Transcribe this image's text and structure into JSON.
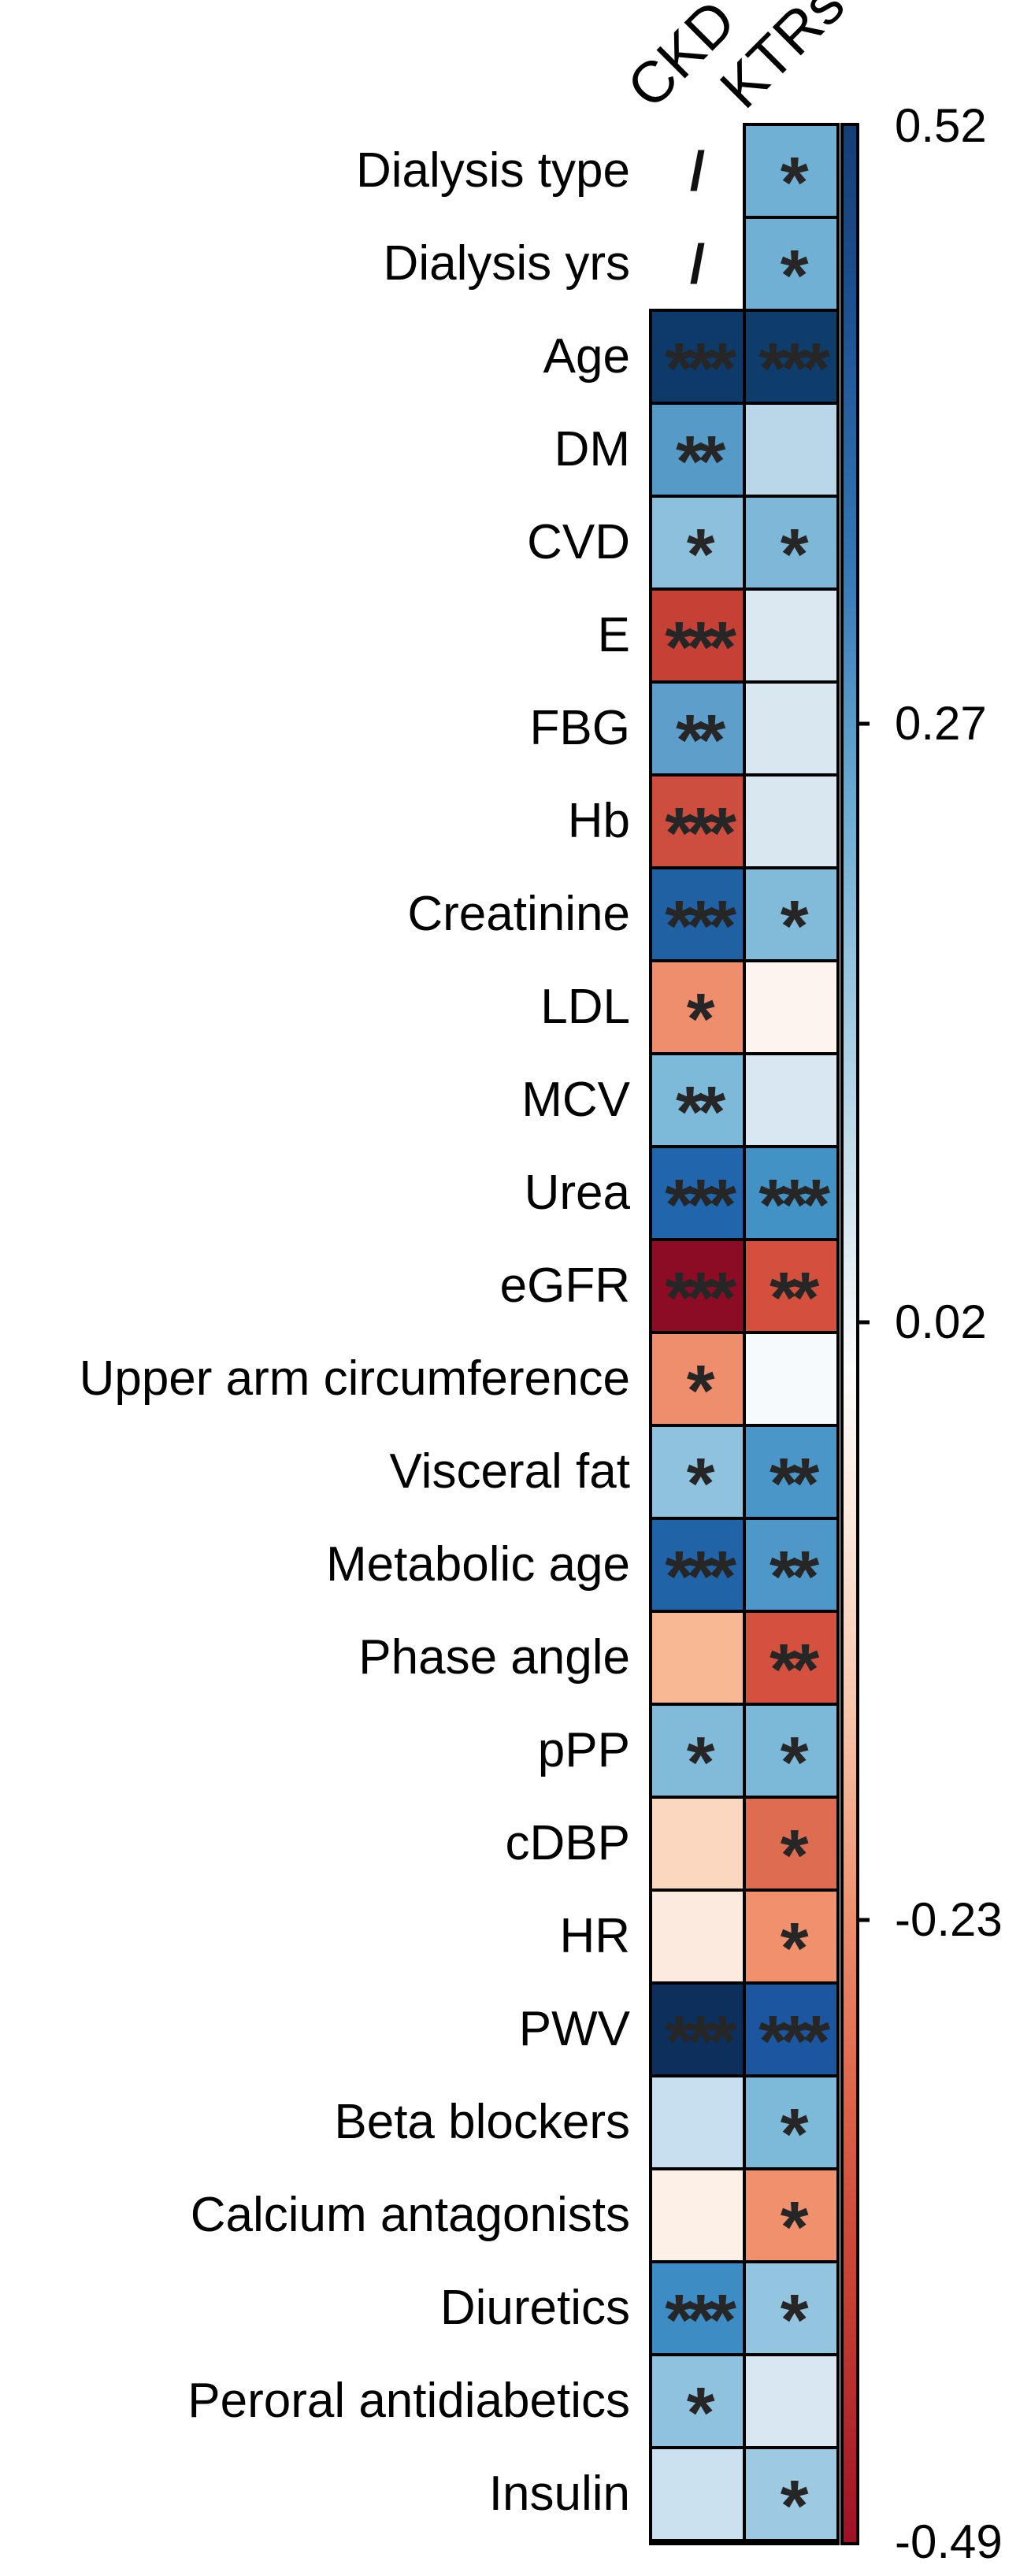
{
  "chart_data": {
    "type": "heatmap",
    "title": "",
    "columns": [
      "CKD",
      "KTRs"
    ],
    "missing_mark": "/",
    "legend_position": "right",
    "colorbar": {
      "vmax": 0.52,
      "vmin": -0.49,
      "ticks": [
        {
          "label": "0.52",
          "value": 0.52,
          "edge": true
        },
        {
          "label": "0.27",
          "value": 0.27,
          "edge": false
        },
        {
          "label": "0.02",
          "value": 0.02,
          "edge": false
        },
        {
          "label": "-0.23",
          "value": -0.23,
          "edge": false
        },
        {
          "label": "-0.49",
          "value": -0.49,
          "edge": true
        }
      ],
      "gradient": [
        {
          "pos": 0.0,
          "color": "#143e76"
        },
        {
          "pos": 0.08,
          "color": "#1d5292"
        },
        {
          "pos": 0.18,
          "color": "#3377b5"
        },
        {
          "pos": 0.28,
          "color": "#6aabd2"
        },
        {
          "pos": 0.38,
          "color": "#a8cfe4"
        },
        {
          "pos": 0.48,
          "color": "#e8f0f5"
        },
        {
          "pos": 0.515,
          "color": "#fdfcfb"
        },
        {
          "pos": 0.58,
          "color": "#fbe7da"
        },
        {
          "pos": 0.66,
          "color": "#f7c3a8"
        },
        {
          "pos": 0.74,
          "color": "#ee906d"
        },
        {
          "pos": 0.82,
          "color": "#dd6148"
        },
        {
          "pos": 0.91,
          "color": "#c23b30"
        },
        {
          "pos": 1.0,
          "color": "#9e1126"
        }
      ]
    },
    "rows": [
      {
        "label": "Dialysis type",
        "ckd": {
          "na": true,
          "mark": "/"
        },
        "ktrs": {
          "color": "#6fb0d4",
          "stars": "*",
          "r_est": 0.3
        }
      },
      {
        "label": "Dialysis yrs",
        "ckd": {
          "na": true,
          "mark": "/"
        },
        "ktrs": {
          "color": "#6fb0d4",
          "stars": "*",
          "r_est": 0.3
        }
      },
      {
        "label": "Age",
        "ckd": {
          "color": "#0d3a68",
          "stars": "***",
          "r_est": 0.5
        },
        "ktrs": {
          "color": "#0e3c6b",
          "stars": "***",
          "r_est": 0.5
        }
      },
      {
        "label": "DM",
        "ckd": {
          "color": "#569ac8",
          "stars": "**",
          "r_est": 0.34
        },
        "ktrs": {
          "color": "#b9d7e8",
          "stars": "",
          "r_est": 0.13
        }
      },
      {
        "label": "CVD",
        "ckd": {
          "color": "#8cc0dd",
          "stars": "*",
          "r_est": 0.22
        },
        "ktrs": {
          "color": "#7db8d8",
          "stars": "*",
          "r_est": 0.26
        }
      },
      {
        "label": "E",
        "ckd": {
          "color": "#c64135",
          "stars": "***",
          "r_est": -0.4
        },
        "ktrs": {
          "color": "#dbe8f2",
          "stars": "",
          "r_est": 0.06
        }
      },
      {
        "label": "FBG",
        "ckd": {
          "color": "#5d9fca",
          "stars": "**",
          "r_est": 0.33
        },
        "ktrs": {
          "color": "#d9e7f1",
          "stars": "",
          "r_est": 0.07
        }
      },
      {
        "label": "Hb",
        "ckd": {
          "color": "#cd4e3e",
          "stars": "***",
          "r_est": -0.38
        },
        "ktrs": {
          "color": "#d9e7f1",
          "stars": "",
          "r_est": 0.07
        }
      },
      {
        "label": "Creatinine",
        "ckd": {
          "color": "#2061a3",
          "stars": "***",
          "r_est": 0.46
        },
        "ktrs": {
          "color": "#82bbda",
          "stars": "*",
          "r_est": 0.25
        }
      },
      {
        "label": "LDL",
        "ckd": {
          "color": "#ef8e6d",
          "stars": "*",
          "r_est": -0.25
        },
        "ktrs": {
          "color": "#fdf4f0",
          "stars": "",
          "r_est": -0.02
        }
      },
      {
        "label": "MCV",
        "ckd": {
          "color": "#7db9d9",
          "stars": "**",
          "r_est": 0.26
        },
        "ktrs": {
          "color": "#d8e7f1",
          "stars": "",
          "r_est": 0.07
        }
      },
      {
        "label": "Urea",
        "ckd": {
          "color": "#2166ac",
          "stars": "***",
          "r_est": 0.44
        },
        "ktrs": {
          "color": "#4292c5",
          "stars": "***",
          "r_est": 0.38
        }
      },
      {
        "label": "eGFR",
        "ckd": {
          "color": "#8b0c24",
          "stars": "***",
          "r_est": -0.49
        },
        "ktrs": {
          "color": "#d4503d",
          "stars": "**",
          "r_est": -0.36
        }
      },
      {
        "label": "Upper arm circumference",
        "ckd": {
          "color": "#ef8e6d",
          "stars": "*",
          "r_est": -0.25
        },
        "ktrs": {
          "color": "#f6fafc",
          "stars": "",
          "r_est": 0.01
        }
      },
      {
        "label": "Visceral fat",
        "ckd": {
          "color": "#8ec2de",
          "stars": "*",
          "r_est": 0.22
        },
        "ktrs": {
          "color": "#4a96c8",
          "stars": "**",
          "r_est": 0.36
        }
      },
      {
        "label": "Metabolic age",
        "ckd": {
          "color": "#2063a6",
          "stars": "***",
          "r_est": 0.45
        },
        "ktrs": {
          "color": "#4d98c8",
          "stars": "**",
          "r_est": 0.35
        }
      },
      {
        "label": "Phase angle",
        "ckd": {
          "color": "#f8b894",
          "stars": "",
          "r_est": -0.17
        },
        "ktrs": {
          "color": "#d5513f",
          "stars": "**",
          "r_est": -0.36
        }
      },
      {
        "label": "pPP",
        "ckd": {
          "color": "#81bbd9",
          "stars": "*",
          "r_est": 0.25
        },
        "ktrs": {
          "color": "#7cb8d8",
          "stars": "*",
          "r_est": 0.26
        }
      },
      {
        "label": "cDBP",
        "ckd": {
          "color": "#fbd7bf",
          "stars": "",
          "r_est": -0.1
        },
        "ktrs": {
          "color": "#dd6c50",
          "stars": "*",
          "r_est": -0.31
        }
      },
      {
        "label": "HR",
        "ckd": {
          "color": "#fdeade",
          "stars": "",
          "r_est": -0.05
        },
        "ktrs": {
          "color": "#f0906c",
          "stars": "*",
          "r_est": -0.24
        }
      },
      {
        "label": "PWV",
        "ckd": {
          "color": "#0c2f5c",
          "stars": "***",
          "r_est": 0.52
        },
        "ktrs": {
          "color": "#1d56a0",
          "stars": "***",
          "r_est": 0.44
        }
      },
      {
        "label": "Beta blockers",
        "ckd": {
          "color": "#c8dff0",
          "stars": "",
          "r_est": 0.1
        },
        "ktrs": {
          "color": "#7db9d9",
          "stars": "*",
          "r_est": 0.26
        }
      },
      {
        "label": "Calcium antagonists",
        "ckd": {
          "color": "#fdf0e7",
          "stars": "",
          "r_est": -0.03
        },
        "ktrs": {
          "color": "#f0906c",
          "stars": "*",
          "r_est": -0.24
        }
      },
      {
        "label": "Diuretics",
        "ckd": {
          "color": "#3d8dc4",
          "stars": "***",
          "r_est": 0.4
        },
        "ktrs": {
          "color": "#94c5e0",
          "stars": "*",
          "r_est": 0.2
        }
      },
      {
        "label": "Peroral antidiabetics",
        "ckd": {
          "color": "#8ec2de",
          "stars": "*",
          "r_est": 0.22
        },
        "ktrs": {
          "color": "#d8e7f1",
          "stars": "",
          "r_est": 0.07
        }
      },
      {
        "label": "Insulin",
        "ckd": {
          "color": "#cbe1ef",
          "stars": "",
          "r_est": 0.09
        },
        "ktrs": {
          "color": "#9dc9e2",
          "stars": "*",
          "r_est": 0.19
        }
      }
    ]
  }
}
